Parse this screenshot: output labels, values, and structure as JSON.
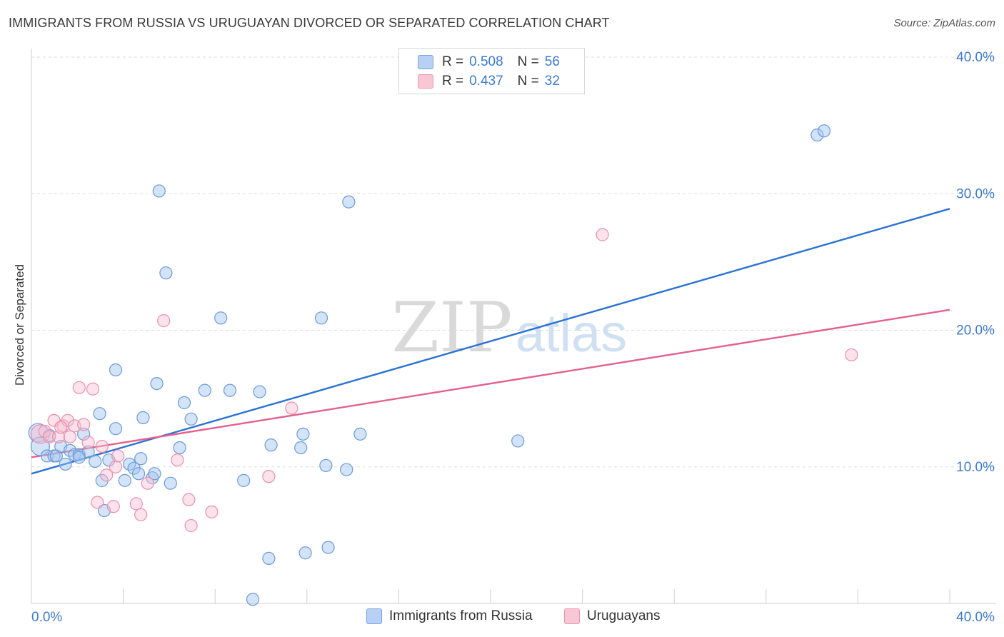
{
  "title": "IMMIGRANTS FROM RUSSIA VS URUGUAYAN DIVORCED OR SEPARATED CORRELATION CHART",
  "source": "Source: ZipAtlas.com",
  "watermark": {
    "zip": "ZIP",
    "atlas": "atlas"
  },
  "legend": {
    "r_label": "R =",
    "n_label": "N =",
    "items": [
      {
        "r": "0.508",
        "n": "56",
        "fill": "#b7d0f4",
        "stroke": "#7aa3e0"
      },
      {
        "r": "0.437",
        "n": "32",
        "fill": "#f8c7d6",
        "stroke": "#ec93b0"
      }
    ]
  },
  "bottom_legend": [
    "Immigrants from Russia",
    "Uruguayans"
  ],
  "colors": {
    "blue_line": "#2a72d4",
    "pink_line": "#e4608d",
    "blue_fill": "rgba(160,196,240,0.45)",
    "blue_stroke": "#6a9ad8",
    "pink_fill": "rgba(248,190,210,0.45)",
    "pink_stroke": "#e98fae",
    "axis_text": "#3c7bd6"
  },
  "chart_data": {
    "type": "scatter",
    "title": "IMMIGRANTS FROM RUSSIA VS URUGUAYAN DIVORCED OR SEPARATED CORRELATION CHART",
    "xlabel": "",
    "ylabel": "Divorced or Separated",
    "xlim": [
      0,
      40
    ],
    "ylim": [
      0,
      40
    ],
    "x_tick_labels": [
      "0.0%",
      "40.0%"
    ],
    "y_ticks": [
      10,
      20,
      30,
      40
    ],
    "y_tick_labels": [
      "10.0%",
      "20.0%",
      "30.0%",
      "40.0%"
    ],
    "grid": "horizontal dashed",
    "series": [
      {
        "name": "Immigrants from Russia",
        "trend": {
          "x": [
            0,
            40
          ],
          "y": [
            9.5,
            28.9
          ]
        },
        "points": [
          [
            0.1,
            12.5
          ],
          [
            0.2,
            11.5
          ],
          [
            0.5,
            10.8
          ],
          [
            0.6,
            12.3
          ],
          [
            0.8,
            10.8
          ],
          [
            0.9,
            10.8
          ],
          [
            1.1,
            11.5
          ],
          [
            1.3,
            10.2
          ],
          [
            1.5,
            11.2
          ],
          [
            1.7,
            10.9
          ],
          [
            1.9,
            10.9
          ],
          [
            2.1,
            12.4
          ],
          [
            2.3,
            11.1
          ],
          [
            2.6,
            10.4
          ],
          [
            2.8,
            13.9
          ],
          [
            2.9,
            9.0
          ],
          [
            3.2,
            10.5
          ],
          [
            3.5,
            12.8
          ],
          [
            3.5,
            17.1
          ],
          [
            3.9,
            9.0
          ],
          [
            4.1,
            10.2
          ],
          [
            4.3,
            9.9
          ],
          [
            4.5,
            9.5
          ],
          [
            4.6,
            10.6
          ],
          [
            4.7,
            13.6
          ],
          [
            5.1,
            9.2
          ],
          [
            5.3,
            16.1
          ],
          [
            5.4,
            30.2
          ],
          [
            5.7,
            24.2
          ],
          [
            5.9,
            8.8
          ],
          [
            6.3,
            11.4
          ],
          [
            6.5,
            14.7
          ],
          [
            6.8,
            13.5
          ],
          [
            7.4,
            15.6
          ],
          [
            8.1,
            20.9
          ],
          [
            8.5,
            15.6
          ],
          [
            9.1,
            9.0
          ],
          [
            9.5,
            0.3
          ],
          [
            9.8,
            15.5
          ],
          [
            10.2,
            3.3
          ],
          [
            10.3,
            11.6
          ],
          [
            11.6,
            11.4
          ],
          [
            11.7,
            12.4
          ],
          [
            11.8,
            3.7
          ],
          [
            12.5,
            20.9
          ],
          [
            12.7,
            10.1
          ],
          [
            12.8,
            4.1
          ],
          [
            13.6,
            9.8
          ],
          [
            13.7,
            29.4
          ],
          [
            14.2,
            12.4
          ],
          [
            21.1,
            11.9
          ],
          [
            34.2,
            34.3
          ],
          [
            34.5,
            34.6
          ],
          [
            3.0,
            6.8
          ],
          [
            5.2,
            9.5
          ],
          [
            1.9,
            10.7
          ]
        ]
      },
      {
        "name": "Uruguayans",
        "trend": {
          "x": [
            0,
            40
          ],
          "y": [
            10.7,
            21.5
          ]
        },
        "points": [
          [
            0.2,
            12.4
          ],
          [
            0.4,
            12.6
          ],
          [
            0.6,
            12.2
          ],
          [
            0.8,
            13.4
          ],
          [
            1.0,
            12.2
          ],
          [
            1.2,
            13.0
          ],
          [
            1.4,
            13.4
          ],
          [
            1.5,
            12.2
          ],
          [
            1.7,
            13.0
          ],
          [
            1.9,
            15.8
          ],
          [
            2.1,
            13.1
          ],
          [
            2.3,
            11.8
          ],
          [
            2.5,
            15.7
          ],
          [
            2.7,
            7.4
          ],
          [
            2.9,
            11.5
          ],
          [
            3.1,
            9.4
          ],
          [
            3.4,
            7.1
          ],
          [
            3.5,
            10.0
          ],
          [
            3.6,
            10.8
          ],
          [
            4.4,
            7.3
          ],
          [
            4.6,
            6.5
          ],
          [
            4.9,
            8.8
          ],
          [
            5.6,
            20.7
          ],
          [
            6.2,
            10.5
          ],
          [
            6.7,
            7.6
          ],
          [
            6.8,
            5.7
          ],
          [
            7.7,
            6.7
          ],
          [
            10.2,
            9.3
          ],
          [
            11.2,
            14.3
          ],
          [
            24.8,
            27.0
          ],
          [
            35.7,
            18.2
          ],
          [
            1.1,
            12.9
          ]
        ]
      }
    ]
  }
}
